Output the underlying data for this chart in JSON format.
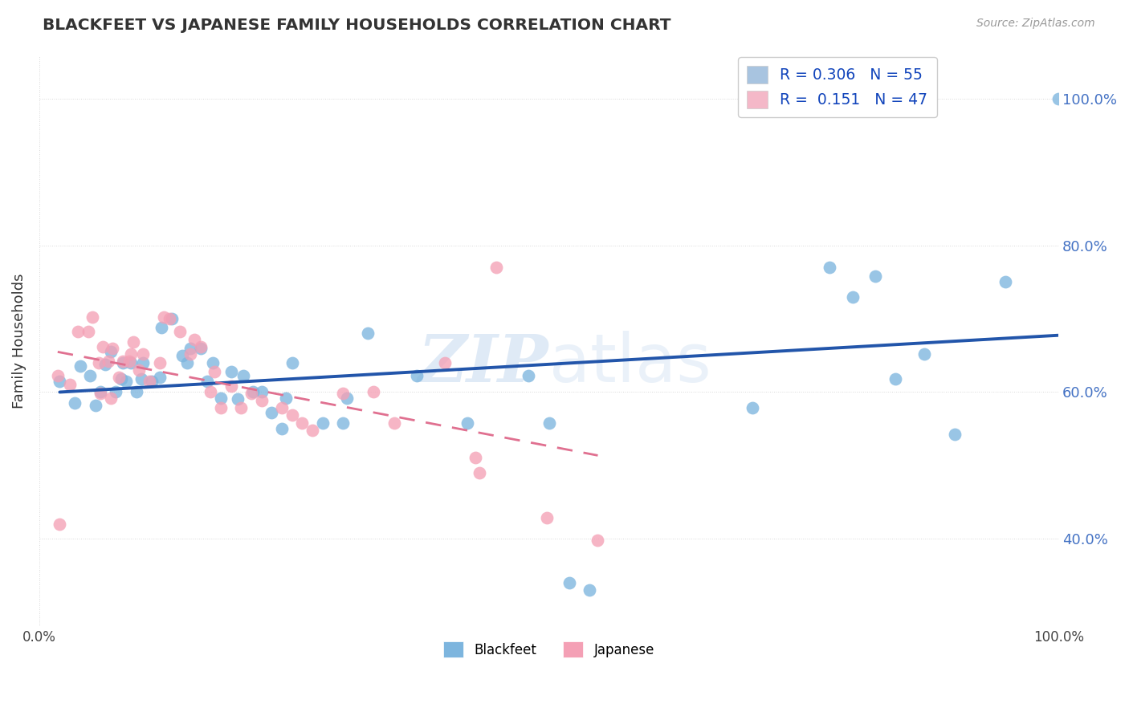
{
  "title": "BLACKFEET VS JAPANESE FAMILY HOUSEHOLDS CORRELATION CHART",
  "source": "Source: ZipAtlas.com",
  "ylabel": "Family Households",
  "xlim": [
    0.0,
    1.0
  ],
  "ylim": [
    0.28,
    1.06
  ],
  "ytick_values": [
    0.4,
    0.6,
    0.8,
    1.0
  ],
  "ytick_labels": [
    "40.0%",
    "60.0%",
    "80.0%",
    "100.0%"
  ],
  "xtick_values": [
    0.0,
    1.0
  ],
  "xtick_labels": [
    "0.0%",
    "100.0%"
  ],
  "blackfeet_color": "#7db5de",
  "japanese_color": "#f4a0b5",
  "regression_blue": "#2255aa",
  "regression_pink": "#e07090",
  "grid_color": "#d8d8d8",
  "watermark_color": "#c5d9ef",
  "legend_R_color": "#4472c4",
  "blackfeet_R": 0.306,
  "blackfeet_N": 55,
  "japanese_R": 0.151,
  "japanese_N": 47,
  "blackfeet_points": [
    [
      0.02,
      0.615
    ],
    [
      0.035,
      0.585
    ],
    [
      0.04,
      0.635
    ],
    [
      0.05,
      0.622
    ],
    [
      0.055,
      0.582
    ],
    [
      0.06,
      0.6
    ],
    [
      0.065,
      0.638
    ],
    [
      0.07,
      0.655
    ],
    [
      0.075,
      0.6
    ],
    [
      0.08,
      0.618
    ],
    [
      0.082,
      0.64
    ],
    [
      0.085,
      0.615
    ],
    [
      0.09,
      0.64
    ],
    [
      0.095,
      0.6
    ],
    [
      0.1,
      0.618
    ],
    [
      0.102,
      0.64
    ],
    [
      0.11,
      0.615
    ],
    [
      0.118,
      0.62
    ],
    [
      0.12,
      0.688
    ],
    [
      0.13,
      0.7
    ],
    [
      0.14,
      0.65
    ],
    [
      0.145,
      0.64
    ],
    [
      0.148,
      0.66
    ],
    [
      0.158,
      0.66
    ],
    [
      0.165,
      0.615
    ],
    [
      0.17,
      0.64
    ],
    [
      0.178,
      0.592
    ],
    [
      0.188,
      0.628
    ],
    [
      0.195,
      0.59
    ],
    [
      0.2,
      0.622
    ],
    [
      0.21,
      0.6
    ],
    [
      0.218,
      0.6
    ],
    [
      0.228,
      0.572
    ],
    [
      0.238,
      0.55
    ],
    [
      0.242,
      0.592
    ],
    [
      0.248,
      0.64
    ],
    [
      0.278,
      0.558
    ],
    [
      0.298,
      0.558
    ],
    [
      0.302,
      0.592
    ],
    [
      0.322,
      0.68
    ],
    [
      0.37,
      0.622
    ],
    [
      0.42,
      0.558
    ],
    [
      0.48,
      0.622
    ],
    [
      0.5,
      0.558
    ],
    [
      0.52,
      0.34
    ],
    [
      0.54,
      0.33
    ],
    [
      0.7,
      0.578
    ],
    [
      0.775,
      0.77
    ],
    [
      0.798,
      0.73
    ],
    [
      0.82,
      0.758
    ],
    [
      0.84,
      0.618
    ],
    [
      0.868,
      0.652
    ],
    [
      0.898,
      0.542
    ],
    [
      0.948,
      0.75
    ],
    [
      1.0,
      1.0
    ]
  ],
  "japanese_points": [
    [
      0.018,
      0.622
    ],
    [
      0.03,
      0.61
    ],
    [
      0.038,
      0.682
    ],
    [
      0.048,
      0.682
    ],
    [
      0.052,
      0.702
    ],
    [
      0.058,
      0.64
    ],
    [
      0.062,
      0.662
    ],
    [
      0.068,
      0.642
    ],
    [
      0.072,
      0.66
    ],
    [
      0.078,
      0.62
    ],
    [
      0.082,
      0.642
    ],
    [
      0.088,
      0.642
    ],
    [
      0.09,
      0.652
    ],
    [
      0.092,
      0.668
    ],
    [
      0.098,
      0.63
    ],
    [
      0.102,
      0.652
    ],
    [
      0.108,
      0.615
    ],
    [
      0.118,
      0.64
    ],
    [
      0.122,
      0.702
    ],
    [
      0.128,
      0.7
    ],
    [
      0.138,
      0.682
    ],
    [
      0.148,
      0.652
    ],
    [
      0.152,
      0.672
    ],
    [
      0.158,
      0.662
    ],
    [
      0.168,
      0.6
    ],
    [
      0.172,
      0.628
    ],
    [
      0.178,
      0.578
    ],
    [
      0.188,
      0.608
    ],
    [
      0.198,
      0.578
    ],
    [
      0.208,
      0.598
    ],
    [
      0.218,
      0.588
    ],
    [
      0.238,
      0.578
    ],
    [
      0.248,
      0.568
    ],
    [
      0.258,
      0.558
    ],
    [
      0.268,
      0.548
    ],
    [
      0.298,
      0.598
    ],
    [
      0.328,
      0.6
    ],
    [
      0.348,
      0.558
    ],
    [
      0.398,
      0.64
    ],
    [
      0.428,
      0.51
    ],
    [
      0.432,
      0.49
    ],
    [
      0.448,
      0.77
    ],
    [
      0.498,
      0.428
    ],
    [
      0.548,
      0.398
    ],
    [
      0.02,
      0.42
    ],
    [
      0.07,
      0.592
    ],
    [
      0.06,
      0.598
    ]
  ]
}
